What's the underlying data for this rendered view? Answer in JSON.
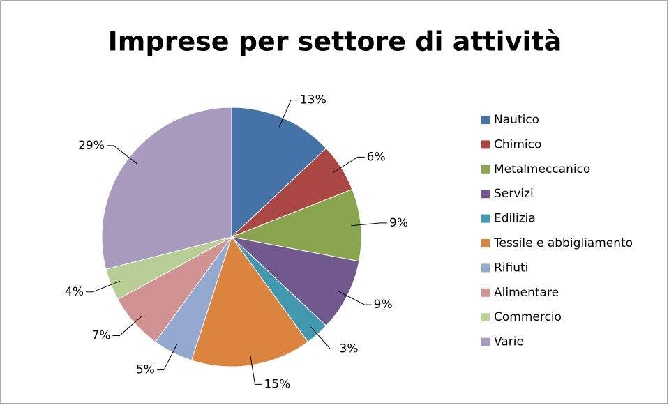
{
  "chart_data": {
    "type": "pie",
    "title": "Imprese per settore di attività",
    "categories": [
      "Nautico",
      "Chimico",
      "Metalmeccanico",
      "Servizi",
      "Edilizia",
      "Tessile e abbigliamento",
      "Rifiuti",
      "Alimentare",
      "Commercio",
      "Varie"
    ],
    "values": [
      13,
      6,
      9,
      9,
      3,
      15,
      5,
      7,
      4,
      29
    ],
    "value_labels": [
      "13%",
      "6%",
      "9%",
      "9%",
      "3%",
      "15%",
      "5%",
      "7%",
      "4%",
      "29%"
    ],
    "colors": [
      "#4572a7",
      "#aa4643",
      "#89a54e",
      "#71588f",
      "#4198af",
      "#db843d",
      "#93a9cf",
      "#d19392",
      "#b9cd96",
      "#a99bbd"
    ],
    "legend": "right"
  }
}
